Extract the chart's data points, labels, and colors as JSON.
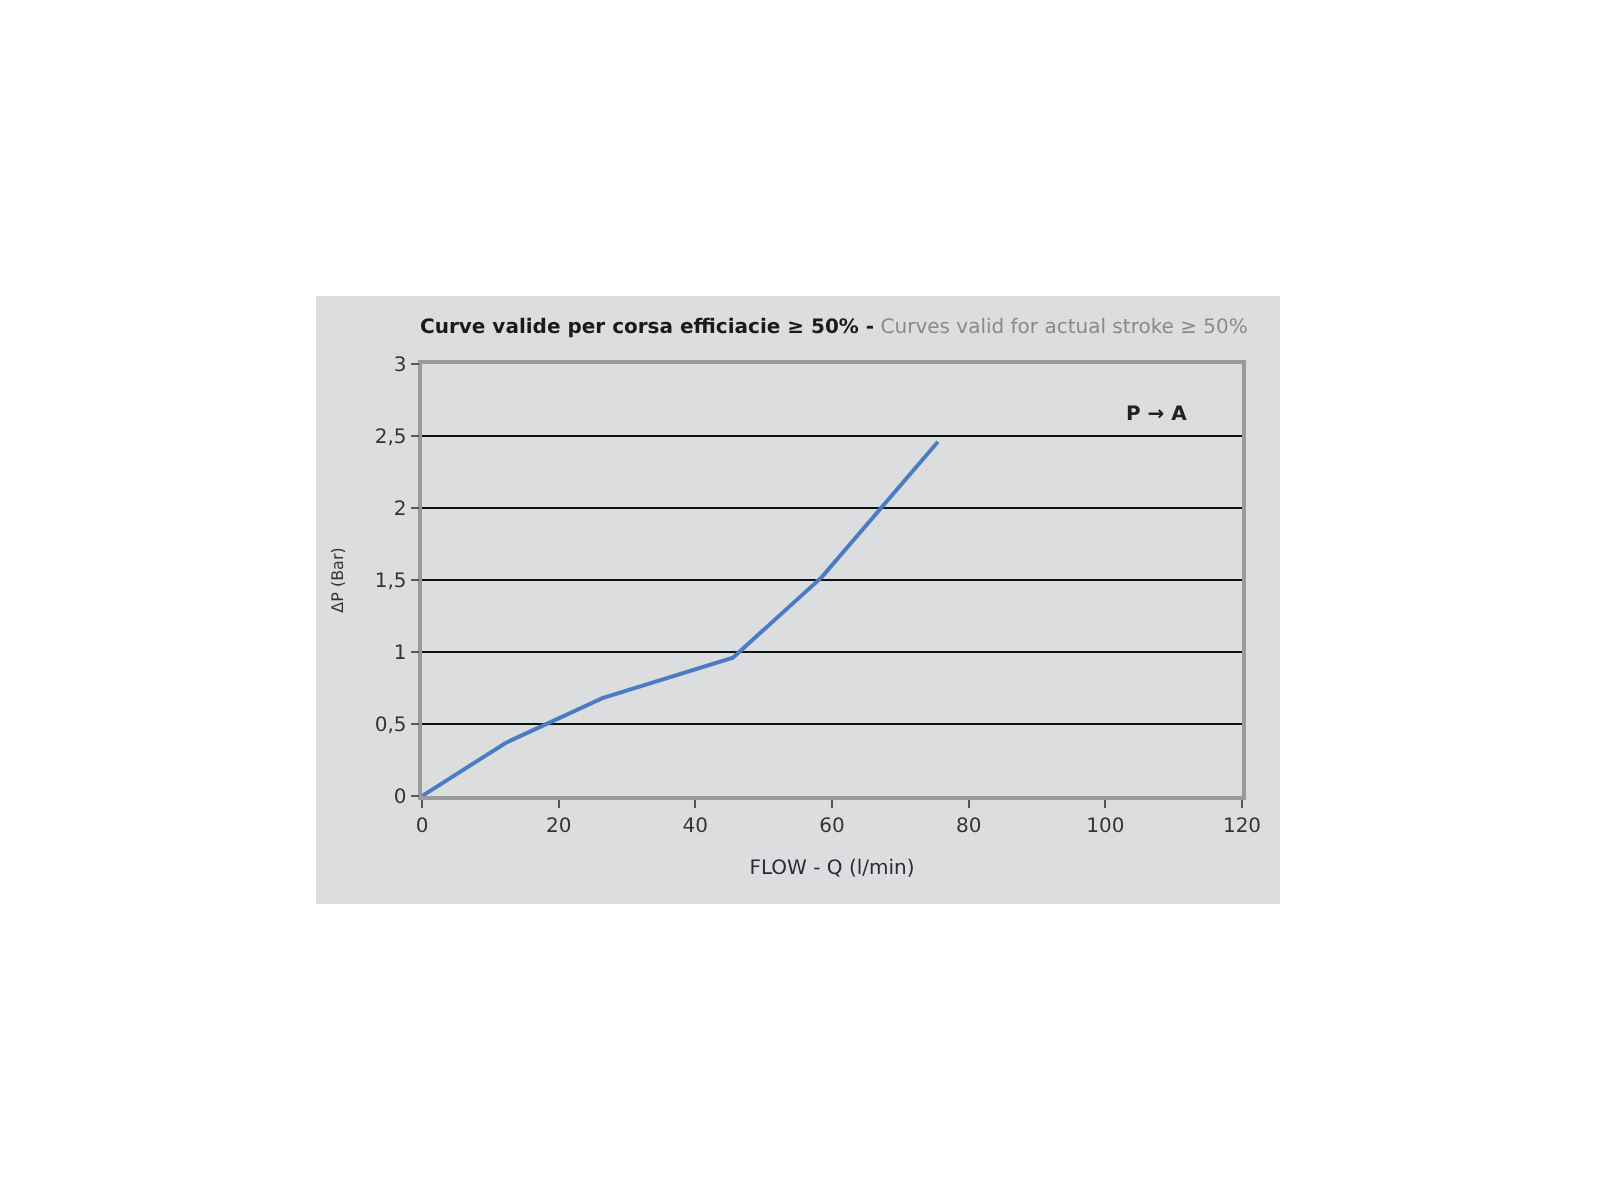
{
  "chart_data": {
    "type": "line",
    "title": "Curve valide per corsa efficiacie ≥ 50% -",
    "subtitle": "Curves valid for actual stroke ≥ 50%",
    "xlabel": "FLOW - Q (l/min)",
    "ylabel": "ΔP (Bar)",
    "annotations": [
      "P → A"
    ],
    "x": [
      0,
      12.3,
      26.4,
      45.5,
      58.5,
      75.5
    ],
    "series": [
      {
        "color": "#4a7cc4",
        "values": [
          0,
          0.37,
          0.68,
          0.96,
          1.52,
          2.46
        ]
      }
    ],
    "xlim": [
      0,
      120
    ],
    "xticks": [
      0,
      20,
      40,
      60,
      80,
      100,
      120
    ],
    "ylim": [
      0,
      3
    ],
    "yticks": [
      0,
      {
        "value": 0.5,
        "label": "0,5"
      },
      1,
      {
        "value": 1.5,
        "label": "1,5"
      },
      2,
      {
        "value": 2.5,
        "label": "2,5"
      },
      3
    ],
    "grid": "y",
    "marker": "none",
    "line_style": "solid"
  }
}
